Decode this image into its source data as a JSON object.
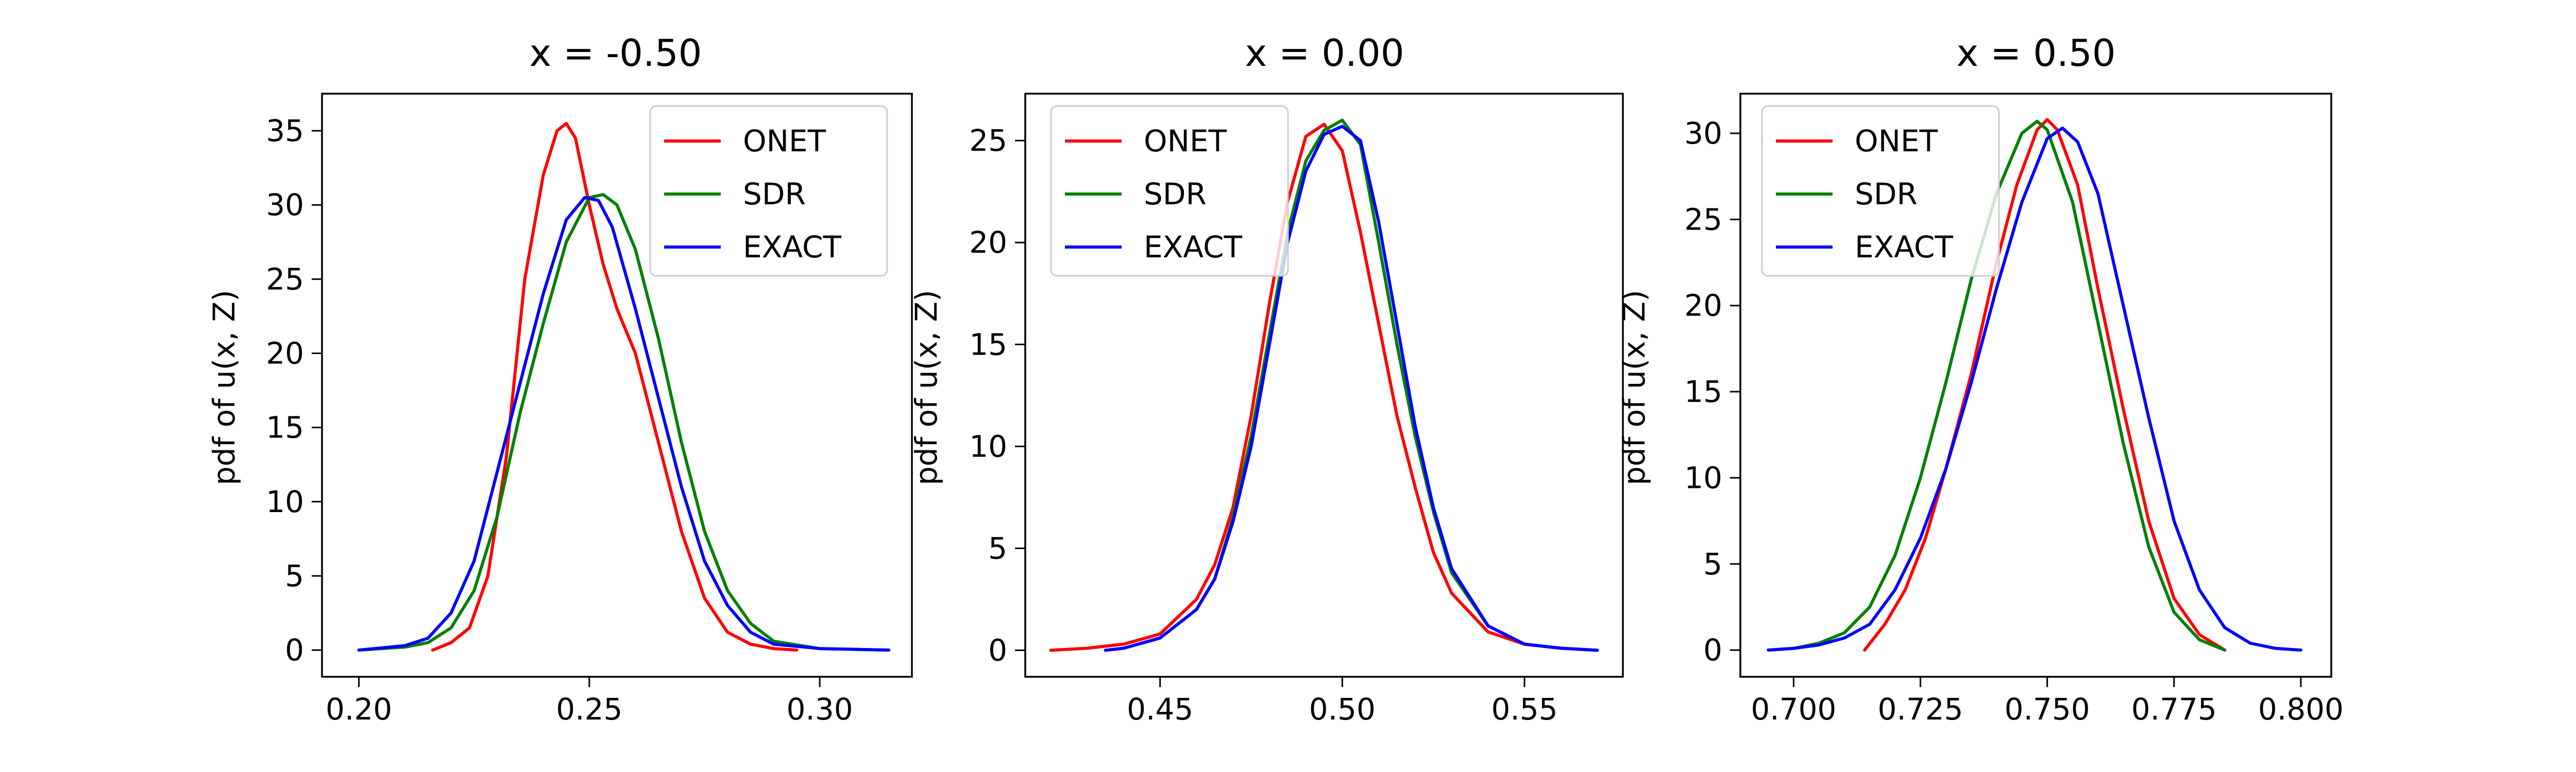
{
  "chart_data": [
    {
      "type": "line",
      "title": "x = -0.50",
      "xlabel": "",
      "ylabel": "pdf of u(x, Z)",
      "xlim": [
        0.192,
        0.32
      ],
      "ylim": [
        -1.8,
        37.5
      ],
      "xticks": [
        0.2,
        0.25,
        0.3
      ],
      "xtick_labels": [
        "0.20",
        "0.25",
        "0.30"
      ],
      "yticks": [
        0,
        5,
        10,
        15,
        20,
        25,
        30,
        35
      ],
      "ytick_labels": [
        "0",
        "5",
        "10",
        "15",
        "20",
        "25",
        "30",
        "35"
      ],
      "legend_position": "top-right",
      "series": [
        {
          "name": "ONET",
          "color": "#ff0000",
          "x": [
            0.216,
            0.22,
            0.224,
            0.228,
            0.232,
            0.236,
            0.24,
            0.243,
            0.245,
            0.247,
            0.25,
            0.253,
            0.256,
            0.26,
            0.265,
            0.27,
            0.275,
            0.28,
            0.285,
            0.29,
            0.295
          ],
          "y": [
            0,
            0.5,
            1.5,
            5,
            13,
            25,
            32,
            35,
            35.5,
            34.5,
            30,
            26,
            23,
            20,
            14,
            8,
            3.5,
            1.2,
            0.4,
            0.1,
            0
          ]
        },
        {
          "name": "SDR",
          "color": "#008000",
          "x": [
            0.2,
            0.21,
            0.215,
            0.22,
            0.225,
            0.23,
            0.235,
            0.24,
            0.245,
            0.25,
            0.253,
            0.256,
            0.26,
            0.265,
            0.27,
            0.275,
            0.28,
            0.285,
            0.29,
            0.3,
            0.315
          ],
          "y": [
            0,
            0.2,
            0.5,
            1.5,
            4,
            9,
            16,
            22,
            27.5,
            30.5,
            30.7,
            30,
            27,
            21,
            14,
            8,
            4,
            1.8,
            0.6,
            0.1,
            0
          ]
        },
        {
          "name": "EXACT",
          "color": "#0000ff",
          "x": [
            0.2,
            0.21,
            0.215,
            0.22,
            0.225,
            0.23,
            0.235,
            0.24,
            0.245,
            0.249,
            0.252,
            0.255,
            0.26,
            0.265,
            0.27,
            0.275,
            0.28,
            0.285,
            0.29,
            0.3,
            0.315
          ],
          "y": [
            0,
            0.3,
            0.8,
            2.5,
            6,
            12,
            18,
            24,
            29,
            30.5,
            30.3,
            28.5,
            23,
            17,
            11,
            6,
            3,
            1.2,
            0.4,
            0.1,
            0
          ]
        }
      ]
    },
    {
      "type": "line",
      "title": "x = 0.00",
      "xlabel": "",
      "ylabel": "pdf of u(x, Z)",
      "xlim": [
        0.413,
        0.577
      ],
      "ylim": [
        -1.3,
        27.3
      ],
      "xticks": [
        0.45,
        0.5,
        0.55
      ],
      "xtick_labels": [
        "0.45",
        "0.50",
        "0.55"
      ],
      "yticks": [
        0,
        5,
        10,
        15,
        20,
        25
      ],
      "ytick_labels": [
        "0",
        "5",
        "10",
        "15",
        "20",
        "25"
      ],
      "legend_position": "top-left",
      "series": [
        {
          "name": "ONET",
          "color": "#ff0000",
          "x": [
            0.42,
            0.43,
            0.44,
            0.45,
            0.46,
            0.465,
            0.47,
            0.475,
            0.48,
            0.485,
            0.49,
            0.495,
            0.5,
            0.505,
            0.51,
            0.515,
            0.52,
            0.525,
            0.53,
            0.54,
            0.55,
            0.56,
            0.57
          ],
          "y": [
            0,
            0.1,
            0.3,
            0.8,
            2.5,
            4.2,
            7,
            11.5,
            17,
            22,
            25.2,
            25.8,
            24.5,
            20.5,
            16,
            11.5,
            8,
            4.8,
            2.8,
            0.9,
            0.3,
            0.1,
            0
          ]
        },
        {
          "name": "SDR",
          "color": "#008000",
          "x": [
            0.435,
            0.44,
            0.45,
            0.46,
            0.465,
            0.47,
            0.475,
            0.48,
            0.485,
            0.49,
            0.495,
            0.5,
            0.505,
            0.51,
            0.515,
            0.52,
            0.525,
            0.53,
            0.54,
            0.55,
            0.56,
            0.57
          ],
          "y": [
            0,
            0.1,
            0.6,
            2,
            3.5,
            6.5,
            10.5,
            15.5,
            20.5,
            24,
            25.5,
            26,
            24.8,
            20,
            15,
            10.5,
            6.8,
            3.8,
            1.2,
            0.3,
            0.1,
            0
          ]
        },
        {
          "name": "EXACT",
          "color": "#0000ff",
          "x": [
            0.435,
            0.44,
            0.45,
            0.46,
            0.465,
            0.47,
            0.475,
            0.48,
            0.485,
            0.49,
            0.495,
            0.5,
            0.505,
            0.51,
            0.515,
            0.52,
            0.525,
            0.53,
            0.54,
            0.55,
            0.56,
            0.57
          ],
          "y": [
            0,
            0.1,
            0.6,
            2,
            3.5,
            6.3,
            10,
            15,
            20,
            23.5,
            25.3,
            25.7,
            25,
            21,
            16,
            11,
            7,
            4,
            1.2,
            0.3,
            0.1,
            0
          ]
        }
      ]
    },
    {
      "type": "line",
      "title": "x = 0.50",
      "xlabel": "",
      "ylabel": "pdf of u(x, Z)",
      "xlim": [
        0.6895,
        0.806
      ],
      "ylim": [
        -1.55,
        32.3
      ],
      "xticks": [
        0.7,
        0.725,
        0.75,
        0.775,
        0.8
      ],
      "xtick_labels": [
        "0.700",
        "0.725",
        "0.750",
        "0.775",
        "0.800"
      ],
      "yticks": [
        0,
        5,
        10,
        15,
        20,
        25,
        30
      ],
      "ytick_labels": [
        "0",
        "5",
        "10",
        "15",
        "20",
        "25",
        "30"
      ],
      "legend_position": "top-left",
      "series": [
        {
          "name": "ONET",
          "color": "#ff0000",
          "x": [
            0.714,
            0.718,
            0.722,
            0.726,
            0.73,
            0.735,
            0.74,
            0.744,
            0.748,
            0.75,
            0.752,
            0.756,
            0.76,
            0.765,
            0.77,
            0.775,
            0.78,
            0.785
          ],
          "y": [
            0,
            1.5,
            3.5,
            6.5,
            10.5,
            16,
            22.5,
            27,
            30.2,
            30.8,
            30.2,
            27,
            21,
            14,
            7.5,
            3,
            0.9,
            0
          ]
        },
        {
          "name": "SDR",
          "color": "#008000",
          "x": [
            0.695,
            0.7,
            0.705,
            0.71,
            0.715,
            0.72,
            0.725,
            0.73,
            0.735,
            0.74,
            0.745,
            0.748,
            0.75,
            0.755,
            0.76,
            0.765,
            0.77,
            0.775,
            0.78,
            0.785
          ],
          "y": [
            0,
            0.1,
            0.4,
            1,
            2.5,
            5.5,
            10,
            15.5,
            21.5,
            26.5,
            30,
            30.7,
            30.2,
            26,
            19,
            12,
            6,
            2.2,
            0.6,
            0
          ]
        },
        {
          "name": "EXACT",
          "color": "#0000ff",
          "x": [
            0.695,
            0.7,
            0.705,
            0.71,
            0.715,
            0.72,
            0.725,
            0.73,
            0.735,
            0.74,
            0.745,
            0.75,
            0.753,
            0.756,
            0.76,
            0.765,
            0.77,
            0.775,
            0.78,
            0.785,
            0.79,
            0.795,
            0.8
          ],
          "y": [
            0,
            0.1,
            0.3,
            0.7,
            1.5,
            3.5,
            6.5,
            10.5,
            15.5,
            21,
            26,
            29.7,
            30.3,
            29.5,
            26.5,
            20,
            13.5,
            7.5,
            3.5,
            1.3,
            0.4,
            0.1,
            0
          ]
        }
      ]
    }
  ]
}
